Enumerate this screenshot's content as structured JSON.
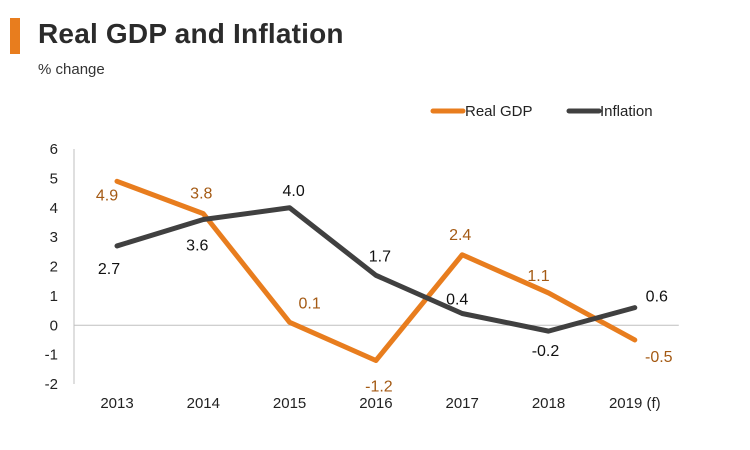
{
  "header": {
    "title": "Real GDP and Inflation",
    "subtitle": "% change"
  },
  "colors": {
    "accent": "#e87d1e",
    "real_gdp": "#e87d1e",
    "inflation": "#404040",
    "real_gdp_label": "#a45a14",
    "inflation_label": "#111111",
    "axis": "#bfbfbf"
  },
  "chart_data": {
    "type": "line",
    "title": "Real GDP and Inflation",
    "subtitle": "% change",
    "xlabel": "",
    "ylabel": "",
    "categories": [
      "2013",
      "2014",
      "2015",
      "2016",
      "2017",
      "2018",
      "2019 (f)"
    ],
    "ylim": [
      -2,
      6
    ],
    "yticks": [
      6,
      5,
      4,
      3,
      2,
      1,
      0,
      -1,
      -2
    ],
    "grid": false,
    "legend_position": "top-right",
    "series": [
      {
        "name": "Real GDP",
        "values": [
          4.9,
          3.8,
          0.1,
          -1.2,
          2.4,
          1.1,
          -0.5
        ],
        "labels": [
          "4.9",
          "3.8",
          "0.1",
          "-1.2",
          "2.4",
          "1.1",
          "-0.5"
        ]
      },
      {
        "name": "Inflation",
        "values": [
          2.7,
          3.6,
          4.0,
          1.7,
          0.4,
          -0.2,
          0.6
        ],
        "labels": [
          "2.7",
          "3.6",
          "4.0",
          "1.7",
          "0.4",
          "-0.2",
          "0.6"
        ]
      }
    ]
  }
}
